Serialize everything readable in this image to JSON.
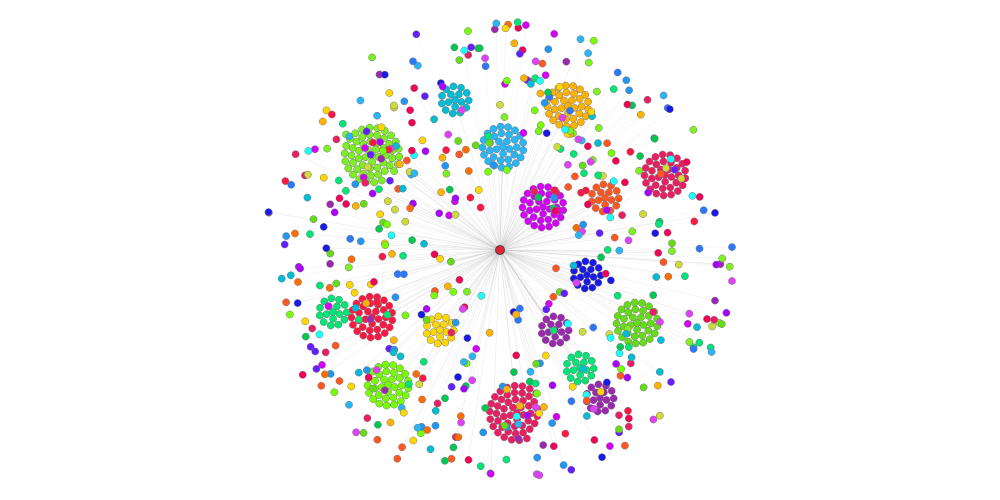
{
  "diagram": {
    "type": "network-graph",
    "layout": "radial",
    "hub_count": 1,
    "edge_color": "#b5b5b5",
    "node_outline": "#777777",
    "hub_color": "#e32636",
    "palette": [
      "#7cf021",
      "#2196f3",
      "#e91e63",
      "#ffb300",
      "#00bcd4",
      "#9c27b0",
      "#1a1ae6",
      "#00e676",
      "#ff5722",
      "#d500f9",
      "#cddc39",
      "#29b6f6",
      "#f50057",
      "#76ff03",
      "#651fff",
      "#18ffff",
      "#ffd600",
      "#00c853",
      "#aa00ff",
      "#ff1744",
      "#2979ff",
      "#64dd17",
      "#ff6d00",
      "#e040fb"
    ],
    "clusters": [
      {
        "kind": "ring",
        "color": "#7cf021",
        "count": 55
      },
      {
        "kind": "ring",
        "color": "#ffb300",
        "count": 40
      },
      {
        "kind": "ring",
        "color": "#29b6f6",
        "count": 35
      },
      {
        "kind": "ring",
        "color": "#e91e63",
        "count": 35
      },
      {
        "kind": "ring",
        "color": "#d500f9",
        "count": 50
      },
      {
        "kind": "ring",
        "color": "#ff5722",
        "count": 30
      },
      {
        "kind": "ring",
        "color": "#00bcd4",
        "count": 30
      },
      {
        "kind": "ring",
        "color": "#00e676",
        "count": 35
      },
      {
        "kind": "ring",
        "color": "#ff1744",
        "count": 35
      },
      {
        "kind": "ring",
        "color": "#64dd17",
        "count": 50
      },
      {
        "kind": "ring",
        "color": "#76ff03",
        "count": 45
      },
      {
        "kind": "ring",
        "color": "#e91e63",
        "count": 50
      },
      {
        "kind": "ring",
        "color": "#1a1ae6",
        "count": 25
      },
      {
        "kind": "ring",
        "color": "#9c27b0",
        "count": 25
      },
      {
        "kind": "ring",
        "color": "#ffd600",
        "count": 25
      },
      {
        "kind": "ring",
        "color": "#00e676",
        "count": 25
      },
      {
        "kind": "ring",
        "color": "#9c27b0",
        "count": 25
      }
    ],
    "scatter_node_count": 520
  }
}
